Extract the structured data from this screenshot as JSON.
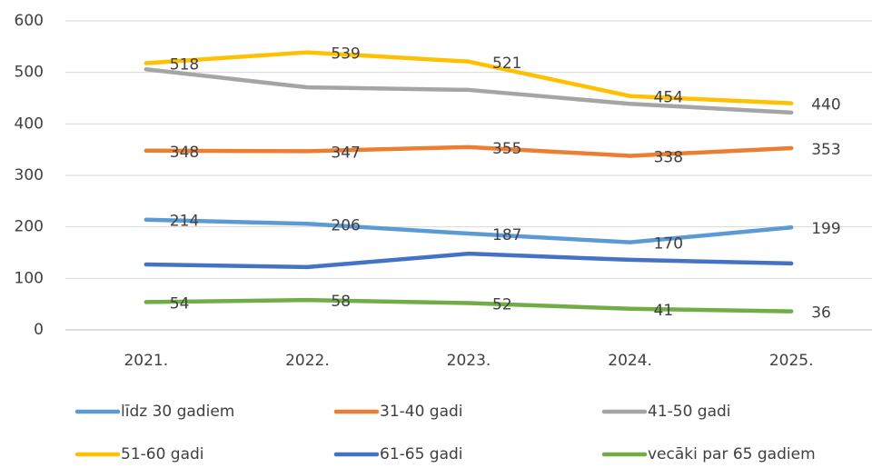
{
  "chart_data": {
    "type": "line",
    "categories": [
      "2021.",
      "2022.",
      "2023.",
      "2024.",
      "2025."
    ],
    "series": [
      {
        "name": "līdz 30 gadiem",
        "color": "#5b9bd5",
        "values": [
          214,
          206,
          187,
          170,
          199
        ],
        "show_labels": true
      },
      {
        "name": "31-40 gadi",
        "color": "#ed7d31",
        "values": [
          348,
          347,
          355,
          338,
          353
        ],
        "show_labels": true
      },
      {
        "name": "41-50 gadi",
        "color": "#a5a5a5",
        "values": [
          506,
          471,
          466,
          439,
          422
        ],
        "show_labels": false
      },
      {
        "name": "51-60 gadi",
        "color": "#ffc000",
        "values": [
          518,
          539,
          521,
          454,
          440
        ],
        "show_labels": true
      },
      {
        "name": "61-65 gadi",
        "color": "#4472c4",
        "values": [
          127,
          122,
          148,
          136,
          129
        ],
        "show_labels": false
      },
      {
        "name": "vecāki par 65 gadiem",
        "color": "#70ad47",
        "values": [
          54,
          58,
          52,
          41,
          36
        ],
        "show_labels": true
      }
    ],
    "ylim": [
      0,
      600
    ],
    "yticks": [
      0,
      100,
      200,
      300,
      400,
      500,
      600
    ],
    "grid": true,
    "legend": "bottom"
  }
}
